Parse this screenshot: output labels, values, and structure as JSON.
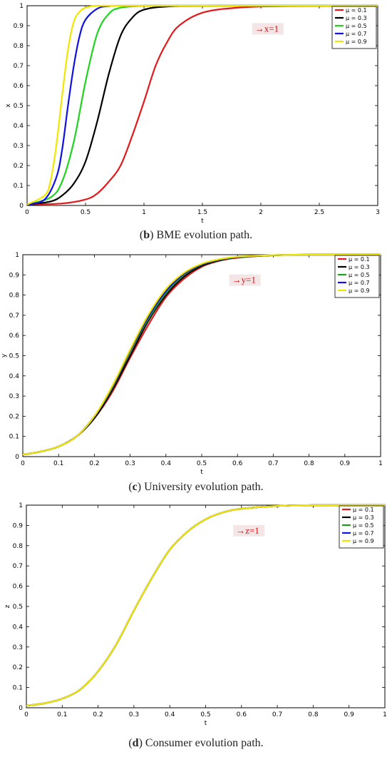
{
  "chart_data": [
    {
      "type": "line",
      "panel": "b",
      "caption_letter": "b",
      "caption_text": " BME evolution path.",
      "xlabel": "t",
      "ylabel": "x",
      "xlim": [
        0,
        3
      ],
      "ylim": [
        0,
        1
      ],
      "xticks": [
        "0",
        "0.5",
        "1",
        "1.5",
        "2",
        "2.5",
        "3"
      ],
      "xtick_values": [
        0,
        0.5,
        1,
        1.5,
        2,
        2.5,
        3
      ],
      "yticks": [
        "0",
        "0.1",
        "0.2",
        "0.3",
        "0.4",
        "0.5",
        "0.6",
        "0.7",
        "0.8",
        "0.9",
        "1"
      ],
      "annotation": "→x=1",
      "annotation_pos": {
        "x": 1.95,
        "y": 0.87
      },
      "legend_placement": "top-right",
      "series": [
        {
          "name": "μ = 0.1",
          "color": "#e31a1c",
          "x": [
            0,
            0.3,
            0.5,
            0.6,
            0.7,
            0.8,
            0.9,
            1.0,
            1.1,
            1.2,
            1.3,
            1.5,
            1.8,
            2.2,
            3.0
          ],
          "y": [
            0.005,
            0.01,
            0.03,
            0.06,
            0.12,
            0.2,
            0.35,
            0.52,
            0.7,
            0.82,
            0.9,
            0.965,
            0.99,
            0.998,
            1.0
          ]
        },
        {
          "name": "μ = 0.3",
          "color": "#000000",
          "x": [
            0,
            0.2,
            0.3,
            0.4,
            0.5,
            0.6,
            0.7,
            0.8,
            0.9,
            1.0,
            1.2,
            1.6,
            3.0
          ],
          "y": [
            0.005,
            0.02,
            0.05,
            0.11,
            0.22,
            0.42,
            0.66,
            0.85,
            0.94,
            0.98,
            0.996,
            1.0,
            1.0
          ]
        },
        {
          "name": "μ = 0.5",
          "color": "#1ed41e",
          "x": [
            0,
            0.2,
            0.3,
            0.4,
            0.5,
            0.6,
            0.7,
            0.8,
            1.0,
            1.3,
            3.0
          ],
          "y": [
            0.005,
            0.04,
            0.12,
            0.32,
            0.62,
            0.86,
            0.96,
            0.99,
            1.0,
            1.0,
            1.0
          ]
        },
        {
          "name": "μ = 0.7",
          "color": "#1010e0",
          "x": [
            0,
            0.15,
            0.25,
            0.3,
            0.35,
            0.4,
            0.45,
            0.5,
            0.6,
            0.7,
            0.9,
            3.0
          ],
          "y": [
            0.005,
            0.03,
            0.14,
            0.28,
            0.5,
            0.7,
            0.85,
            0.93,
            0.985,
            0.998,
            1.0,
            1.0
          ]
        },
        {
          "name": "μ = 0.9",
          "color": "#f2e600",
          "x": [
            0,
            0.15,
            0.2,
            0.25,
            0.3,
            0.35,
            0.4,
            0.45,
            0.5,
            0.6,
            0.8,
            3.0
          ],
          "y": [
            0.005,
            0.05,
            0.12,
            0.3,
            0.55,
            0.78,
            0.92,
            0.97,
            0.99,
            1.0,
            1.0,
            1.0
          ]
        }
      ]
    },
    {
      "type": "line",
      "panel": "c",
      "caption_letter": "c",
      "caption_text": " University evolution path.",
      "xlabel": "t",
      "ylabel": "y",
      "xlim": [
        0,
        1
      ],
      "ylim": [
        0,
        1
      ],
      "xticks": [
        "0",
        "0.1",
        "0.2",
        "0.3",
        "0.4",
        "0.5",
        "0.6",
        "0.7",
        "0.8",
        "0.9",
        "1"
      ],
      "xtick_values": [
        0,
        0.1,
        0.2,
        0.3,
        0.4,
        0.5,
        0.6,
        0.7,
        0.8,
        0.9,
        1
      ],
      "yticks": [
        "0",
        "0.1",
        "0.2",
        "0.3",
        "0.4",
        "0.5",
        "0.6",
        "0.7",
        "0.8",
        "0.9",
        "1"
      ],
      "annotation": "→y=1",
      "annotation_pos": {
        "x": 0.585,
        "y": 0.86
      },
      "legend_placement": "top-right",
      "series": [
        {
          "name": "μ = 0.1",
          "color": "#e31a1c",
          "x": [
            0,
            0.05,
            0.1,
            0.15,
            0.2,
            0.25,
            0.3,
            0.35,
            0.4,
            0.45,
            0.5,
            0.55,
            0.6,
            0.7,
            0.8,
            1.0
          ],
          "y": [
            0.01,
            0.025,
            0.05,
            0.1,
            0.19,
            0.32,
            0.49,
            0.65,
            0.79,
            0.88,
            0.94,
            0.97,
            0.985,
            0.997,
            1.0,
            1.0
          ]
        },
        {
          "name": "μ = 0.3",
          "color": "#000000",
          "x": [
            0,
            0.05,
            0.1,
            0.15,
            0.2,
            0.25,
            0.3,
            0.35,
            0.4,
            0.45,
            0.5,
            0.55,
            0.6,
            0.7,
            0.8,
            1.0
          ],
          "y": [
            0.01,
            0.025,
            0.05,
            0.1,
            0.19,
            0.33,
            0.5,
            0.67,
            0.8,
            0.89,
            0.945,
            0.972,
            0.987,
            0.997,
            1.0,
            1.0
          ]
        },
        {
          "name": "μ = 0.5",
          "color": "#1ea01e",
          "x": [
            0,
            0.05,
            0.1,
            0.15,
            0.2,
            0.25,
            0.3,
            0.35,
            0.4,
            0.45,
            0.5,
            0.55,
            0.6,
            0.7,
            0.8,
            1.0
          ],
          "y": [
            0.01,
            0.025,
            0.05,
            0.1,
            0.2,
            0.34,
            0.52,
            0.68,
            0.81,
            0.9,
            0.95,
            0.975,
            0.988,
            0.997,
            1.0,
            1.0
          ]
        },
        {
          "name": "μ = 0.7",
          "color": "#1010e0",
          "x": [
            0,
            0.05,
            0.1,
            0.15,
            0.2,
            0.25,
            0.3,
            0.35,
            0.4,
            0.45,
            0.5,
            0.55,
            0.6,
            0.7,
            0.8,
            1.0
          ],
          "y": [
            0.01,
            0.025,
            0.05,
            0.1,
            0.2,
            0.345,
            0.525,
            0.69,
            0.82,
            0.905,
            0.952,
            0.977,
            0.989,
            0.998,
            1.0,
            1.0
          ]
        },
        {
          "name": "μ = 0.9",
          "color": "#f2e600",
          "x": [
            0,
            0.05,
            0.1,
            0.15,
            0.2,
            0.25,
            0.3,
            0.35,
            0.4,
            0.45,
            0.5,
            0.55,
            0.6,
            0.7,
            0.8,
            1.0
          ],
          "y": [
            0.01,
            0.025,
            0.05,
            0.1,
            0.2,
            0.35,
            0.53,
            0.7,
            0.83,
            0.91,
            0.955,
            0.978,
            0.99,
            0.998,
            1.0,
            1.0
          ]
        }
      ]
    },
    {
      "type": "line",
      "panel": "d",
      "caption_letter": "d",
      "caption_text": " Consumer evolution path.",
      "xlabel": "t",
      "ylabel": "z",
      "xlim": [
        0,
        1
      ],
      "ylim": [
        0,
        1
      ],
      "xticks": [
        "0",
        "0.1",
        "0.2",
        "0.3",
        "0.4",
        "0.5",
        "0.6",
        "0.7",
        "0.8",
        "0.9",
        "1"
      ],
      "xtick_values": [
        0,
        0.1,
        0.2,
        0.3,
        0.4,
        0.5,
        0.6,
        0.7,
        0.8,
        0.9,
        1
      ],
      "yticks": [
        "0",
        "0.1",
        "0.2",
        "0.3",
        "0.4",
        "0.5",
        "0.6",
        "0.7",
        "0.8",
        "0.9",
        "1"
      ],
      "annotation": "→z=1",
      "annotation_pos": {
        "x": 0.585,
        "y": 0.86
      },
      "legend_placement": "top-right",
      "series": [
        {
          "name": "μ = 0.1",
          "color": "#e31a1c",
          "x": [
            0,
            0.05,
            0.1,
            0.15,
            0.2,
            0.25,
            0.3,
            0.35,
            0.4,
            0.45,
            0.5,
            0.55,
            0.6,
            0.7,
            0.8,
            1.0
          ],
          "y": [
            0.01,
            0.022,
            0.045,
            0.09,
            0.18,
            0.31,
            0.48,
            0.64,
            0.78,
            0.87,
            0.93,
            0.965,
            0.982,
            0.996,
            1.0,
            1.0
          ]
        },
        {
          "name": "μ = 0.3",
          "color": "#000000",
          "x": [
            0,
            0.05,
            0.1,
            0.15,
            0.2,
            0.25,
            0.3,
            0.35,
            0.4,
            0.45,
            0.5,
            0.55,
            0.6,
            0.7,
            0.8,
            1.0
          ],
          "y": [
            0.01,
            0.022,
            0.045,
            0.09,
            0.18,
            0.31,
            0.48,
            0.64,
            0.78,
            0.87,
            0.93,
            0.965,
            0.982,
            0.996,
            1.0,
            1.0
          ]
        },
        {
          "name": "μ = 0.5",
          "color": "#1ea01e",
          "x": [
            0,
            0.05,
            0.1,
            0.15,
            0.2,
            0.25,
            0.3,
            0.35,
            0.4,
            0.45,
            0.5,
            0.55,
            0.6,
            0.7,
            0.8,
            1.0
          ],
          "y": [
            0.01,
            0.022,
            0.045,
            0.09,
            0.18,
            0.31,
            0.48,
            0.64,
            0.78,
            0.87,
            0.93,
            0.965,
            0.982,
            0.996,
            1.0,
            1.0
          ]
        },
        {
          "name": "μ = 0.7",
          "color": "#1010e0",
          "x": [
            0,
            0.05,
            0.1,
            0.15,
            0.2,
            0.25,
            0.3,
            0.35,
            0.4,
            0.45,
            0.5,
            0.55,
            0.6,
            0.7,
            0.8,
            1.0
          ],
          "y": [
            0.01,
            0.022,
            0.045,
            0.09,
            0.18,
            0.31,
            0.48,
            0.64,
            0.78,
            0.87,
            0.93,
            0.965,
            0.982,
            0.996,
            1.0,
            1.0
          ]
        },
        {
          "name": "μ = 0.9",
          "color": "#f2e600",
          "x": [
            0,
            0.05,
            0.1,
            0.15,
            0.2,
            0.25,
            0.3,
            0.35,
            0.4,
            0.45,
            0.5,
            0.55,
            0.6,
            0.7,
            0.8,
            1.0
          ],
          "y": [
            0.01,
            0.022,
            0.045,
            0.09,
            0.18,
            0.31,
            0.48,
            0.64,
            0.78,
            0.87,
            0.93,
            0.965,
            0.982,
            0.996,
            1.0,
            1.0
          ]
        }
      ]
    }
  ]
}
